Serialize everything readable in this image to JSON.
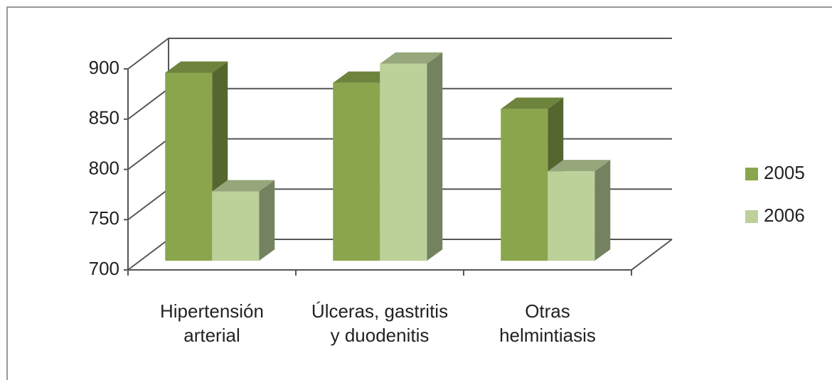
{
  "chart_data": {
    "type": "bar3d",
    "categories": [
      "Hipertensión\narterial",
      "Úlceras, gastritis\ny duodenitis",
      "Otras\nhelmintiasis"
    ],
    "series": [
      {
        "name": "2005",
        "color": "#8aa54c",
        "values": [
          887,
          877,
          851
        ]
      },
      {
        "name": "2006",
        "color": "#bcd19a",
        "values": [
          769,
          896,
          789
        ]
      }
    ],
    "ylim": [
      700,
      900
    ],
    "yticks": [
      700,
      750,
      800,
      850,
      900
    ],
    "grid": true,
    "legend": "right"
  }
}
